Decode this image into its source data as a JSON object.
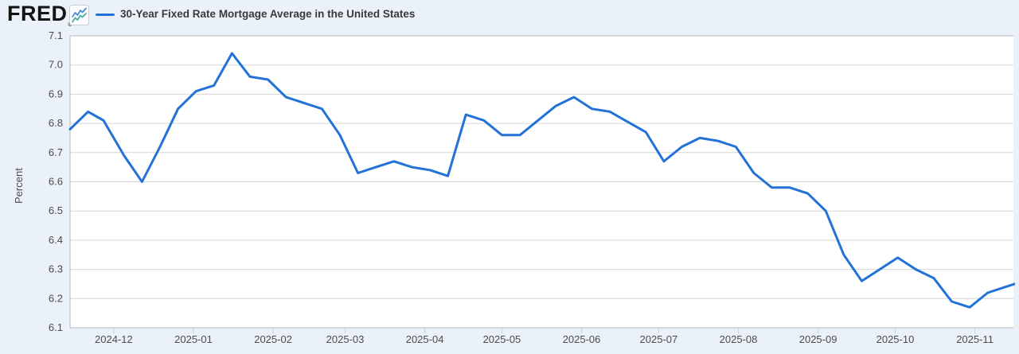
{
  "header": {
    "logo_text": "FRED",
    "registered_mark": "®",
    "chart_icon": "line-chart-icon"
  },
  "colors": {
    "background": "#eaf1f8",
    "plot_background": "#ffffff",
    "gridline": "#d6d6d6",
    "axis_border": "#b3b9bf",
    "tick_mark": "#c3d0e5",
    "text_muted": "#4c4c4c",
    "title_text": "#3a3a3a",
    "series_line": "#2272d8",
    "icon_blue": "#4a8fd3",
    "icon_teal": "#45b0a2"
  },
  "chart_data": {
    "type": "line",
    "title": "30-Year Fixed Rate Mortgage Average in the United States",
    "xlabel": "",
    "ylabel": "Percent",
    "ylim": [
      6.1,
      7.1
    ],
    "y_ticks": [
      6.1,
      6.2,
      6.3,
      6.4,
      6.5,
      6.6,
      6.7,
      6.8,
      6.9,
      7.0,
      7.1
    ],
    "x_domain": [
      "2024-11-14",
      "2025-11-16"
    ],
    "x_ticks": [
      {
        "label": "2024-12",
        "date": "2024-12-01"
      },
      {
        "label": "2025-01",
        "date": "2025-01-01"
      },
      {
        "label": "2025-02",
        "date": "2025-02-01"
      },
      {
        "label": "2025-03",
        "date": "2025-03-01"
      },
      {
        "label": "2025-04",
        "date": "2025-04-01"
      },
      {
        "label": "2025-05",
        "date": "2025-05-01"
      },
      {
        "label": "2025-06",
        "date": "2025-06-01"
      },
      {
        "label": "2025-07",
        "date": "2025-07-01"
      },
      {
        "label": "2025-08",
        "date": "2025-08-01"
      },
      {
        "label": "2025-09",
        "date": "2025-09-01"
      },
      {
        "label": "2025-10",
        "date": "2025-10-01"
      },
      {
        "label": "2025-11",
        "date": "2025-11-01"
      }
    ],
    "grid": "horizontal-only",
    "legend_position": "top-left",
    "series": [
      {
        "name": "30-Year Fixed Rate Mortgage Average in the United States",
        "color": "#2272d8",
        "unit": "Percent",
        "points": [
          [
            "2024-11-14",
            6.78
          ],
          [
            "2024-11-21",
            6.84
          ],
          [
            "2024-11-27",
            6.81
          ],
          [
            "2024-12-05",
            6.69
          ],
          [
            "2024-12-12",
            6.6
          ],
          [
            "2024-12-19",
            6.72
          ],
          [
            "2024-12-26",
            6.85
          ],
          [
            "2025-01-02",
            6.91
          ],
          [
            "2025-01-09",
            6.93
          ],
          [
            "2025-01-16",
            7.04
          ],
          [
            "2025-01-23",
            6.96
          ],
          [
            "2025-01-30",
            6.95
          ],
          [
            "2025-02-06",
            6.89
          ],
          [
            "2025-02-13",
            6.87
          ],
          [
            "2025-02-20",
            6.85
          ],
          [
            "2025-02-27",
            6.76
          ],
          [
            "2025-03-06",
            6.63
          ],
          [
            "2025-03-13",
            6.65
          ],
          [
            "2025-03-20",
            6.67
          ],
          [
            "2025-03-27",
            6.65
          ],
          [
            "2025-04-03",
            6.64
          ],
          [
            "2025-04-10",
            6.62
          ],
          [
            "2025-04-17",
            6.83
          ],
          [
            "2025-04-24",
            6.81
          ],
          [
            "2025-05-01",
            6.76
          ],
          [
            "2025-05-08",
            6.76
          ],
          [
            "2025-05-15",
            6.81
          ],
          [
            "2025-05-22",
            6.86
          ],
          [
            "2025-05-29",
            6.89
          ],
          [
            "2025-06-05",
            6.85
          ],
          [
            "2025-06-12",
            6.84
          ],
          [
            "2025-06-18",
            6.81
          ],
          [
            "2025-06-26",
            6.77
          ],
          [
            "2025-07-03",
            6.67
          ],
          [
            "2025-07-10",
            6.72
          ],
          [
            "2025-07-17",
            6.75
          ],
          [
            "2025-07-24",
            6.74
          ],
          [
            "2025-07-31",
            6.72
          ],
          [
            "2025-08-07",
            6.63
          ],
          [
            "2025-08-14",
            6.58
          ],
          [
            "2025-08-21",
            6.58
          ],
          [
            "2025-08-28",
            6.56
          ],
          [
            "2025-09-04",
            6.5
          ],
          [
            "2025-09-11",
            6.35
          ],
          [
            "2025-09-18",
            6.26
          ],
          [
            "2025-09-25",
            6.3
          ],
          [
            "2025-10-02",
            6.34
          ],
          [
            "2025-10-09",
            6.3
          ],
          [
            "2025-10-16",
            6.27
          ],
          [
            "2025-10-23",
            6.19
          ],
          [
            "2025-10-30",
            6.17
          ],
          [
            "2025-11-06",
            6.22
          ],
          [
            "2025-11-13",
            6.24
          ],
          [
            "2025-11-20",
            6.26
          ]
        ]
      }
    ]
  }
}
